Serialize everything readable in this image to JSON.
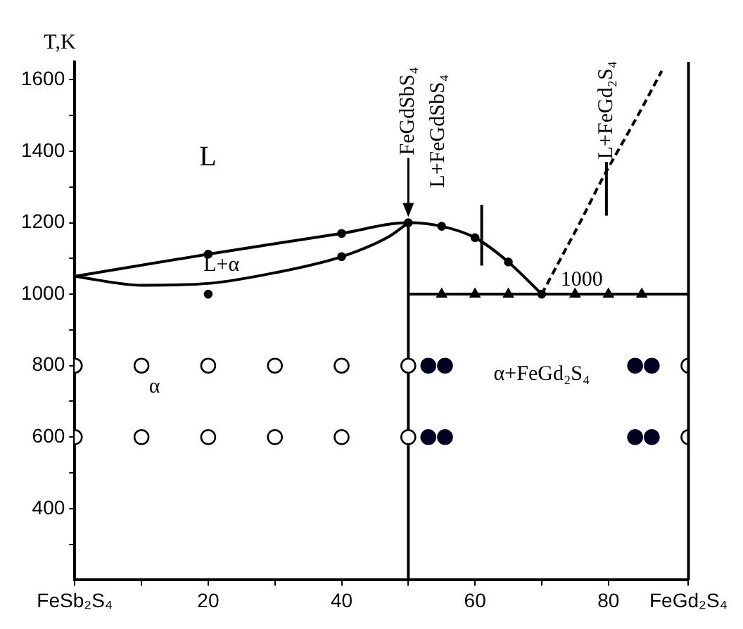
{
  "chart_data": {
    "type": "line",
    "ylabel": "T,K",
    "xlim": [
      0,
      92
    ],
    "ylim": [
      200,
      1650
    ],
    "xticks": [
      {
        "value": 0,
        "label": "FeSb₂S₄"
      },
      {
        "value": 10,
        "label": null
      },
      20,
      {
        "value": 30,
        "label": null
      },
      40,
      {
        "value": 50,
        "label": null
      },
      60,
      {
        "value": 70,
        "label": null
      },
      80,
      {
        "value": 92,
        "label": "FeGd₂S₄"
      }
    ],
    "yticks": [
      {
        "value": 300,
        "label": null
      },
      400,
      {
        "value": 500,
        "label": null
      },
      600,
      {
        "value": 700,
        "label": null
      },
      800,
      {
        "value": 900,
        "label": null
      },
      1000,
      {
        "value": 1100,
        "label": null
      },
      1200,
      {
        "value": 1300,
        "label": null
      },
      1400,
      {
        "value": 1500,
        "label": null
      },
      1600
    ],
    "grid": false,
    "legend": false,
    "series": [
      {
        "x": [
          0,
          20,
          40,
          50,
          55,
          60,
          65,
          70
        ],
        "values": [
          1050,
          1112,
          1170,
          1200,
          1190,
          1158,
          1090,
          1000
        ],
        "color": "#000000",
        "line_style": "solid",
        "marker": "none"
      },
      {
        "x": [
          0,
          10,
          20,
          30,
          40,
          47,
          50
        ],
        "values": [
          1050,
          1025,
          1030,
          1060,
          1105,
          1160,
          1200
        ],
        "color": "#000000",
        "line_style": "solid",
        "marker": "none"
      },
      {
        "x": [
          70,
          73,
          76,
          79,
          82,
          85,
          88
        ],
        "values": [
          1000,
          1105,
          1210,
          1320,
          1420,
          1520,
          1625
        ],
        "color": "#000000",
        "line_style": "dashed",
        "marker": "none"
      },
      {
        "x": [
          50,
          92
        ],
        "values": [
          1000,
          1000
        ],
        "color": "#000000",
        "line_style": "solid",
        "marker": "none"
      },
      {
        "x": [
          50,
          50
        ],
        "values": [
          200,
          1200
        ],
        "color": "#000000",
        "line_style": "solid",
        "marker": "none"
      },
      {
        "x": [
          61,
          61
        ],
        "values": [
          1080,
          1250
        ],
        "color": "#000000",
        "line_style": "solid",
        "marker": "none"
      },
      {
        "x": [
          79.7,
          79.7
        ],
        "values": [
          1220,
          1370
        ],
        "color": "#000000",
        "line_style": "solid",
        "marker": "none"
      },
      {
        "type": "scatter",
        "x": [
          20,
          40,
          20,
          40,
          50,
          55,
          60,
          65,
          70
        ],
        "values": [
          1112,
          1170,
          1000,
          1105,
          1200,
          1190,
          1158,
          1090,
          1000
        ],
        "color": "#000000",
        "marker": "circle"
      },
      {
        "type": "scatter",
        "x": [
          55,
          60,
          65,
          75,
          80,
          85
        ],
        "values": [
          1000,
          1000,
          1000,
          1000,
          1000,
          1000
        ],
        "color": "#000000",
        "marker": "triangle"
      },
      {
        "type": "scatter",
        "x": [
          0,
          10,
          20,
          30,
          40,
          50,
          92,
          0,
          10,
          20,
          30,
          40,
          50,
          92
        ],
        "values": [
          800,
          800,
          800,
          800,
          800,
          800,
          800,
          600,
          600,
          600,
          600,
          600,
          600,
          600
        ],
        "color": "#ffffff",
        "marker": "circle"
      },
      {
        "type": "scatter",
        "x": [
          53,
          55.5,
          84,
          86.5,
          53,
          55.5,
          84,
          86.5
        ],
        "values": [
          800,
          800,
          800,
          800,
          600,
          600,
          600,
          600
        ],
        "color": "#000022",
        "marker": "circle"
      }
    ],
    "annotations": [
      {
        "text": "FeGdSbS₄",
        "x": 50,
        "y": 1200
      },
      "L+FeGdSbS₄",
      {
        "text": "L+FeGd₂S₄",
        "x": 79.7,
        "y": 1370
      },
      "L",
      "L+α",
      "α",
      "α+FeGd₂S₄",
      "1000"
    ]
  }
}
